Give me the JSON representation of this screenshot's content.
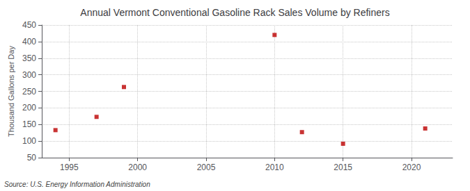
{
  "chart_data": {
    "type": "scatter",
    "title": "Annual Vermont Conventional Gasoline Rack Sales Volume by Refiners",
    "ylabel": "Thousand Gallons per Day",
    "annotation": "Source: U.S. Energy Information Administration",
    "x": [
      1994,
      1997,
      1999,
      2010,
      2012,
      2015,
      2021
    ],
    "values": [
      133,
      173,
      263,
      420,
      127,
      92,
      138
    ],
    "color": "#bb0000",
    "marker": "square",
    "xlim": [
      1993,
      2023
    ],
    "ylim": [
      50,
      450
    ],
    "xticks": [
      1995,
      2000,
      2005,
      2010,
      2015,
      2020
    ],
    "yticks": [
      50,
      100,
      150,
      200,
      250,
      300,
      350,
      400,
      450
    ],
    "grid": true
  }
}
